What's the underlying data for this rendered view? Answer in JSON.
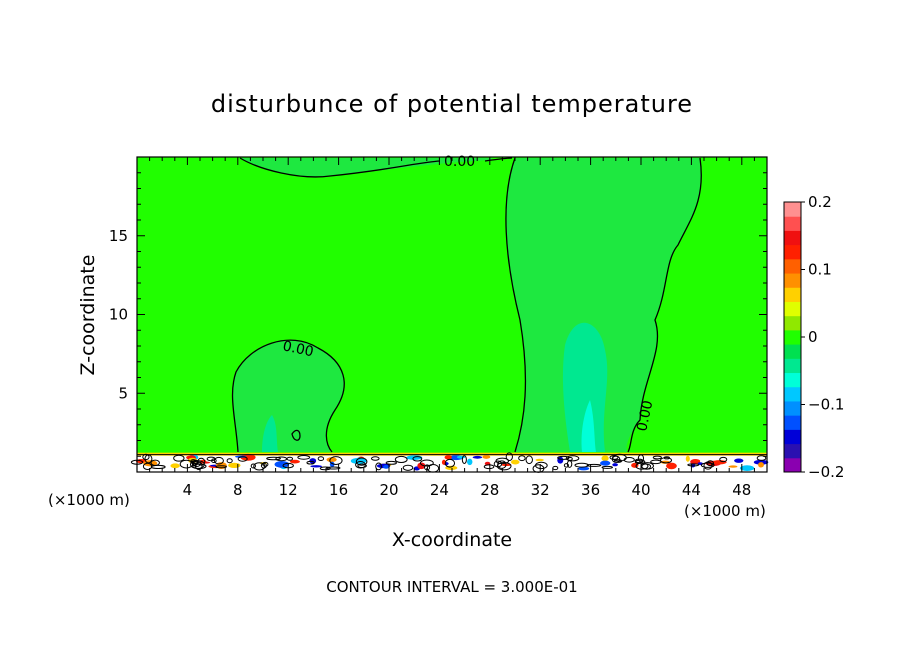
{
  "chart_data": {
    "type": "heatmap",
    "title": "disturbunce of potential temperature",
    "xlabel": "X-coordinate",
    "ylabel": "Z-coordinate",
    "x_unit": "(×1000 m)",
    "x_ticks": [
      4,
      8,
      12,
      16,
      20,
      24,
      28,
      32,
      36,
      40,
      44,
      48
    ],
    "y_ticks": [
      5,
      10,
      15
    ],
    "xlim": [
      0,
      50
    ],
    "ylim": [
      0,
      20
    ],
    "colorbar": {
      "ticks": [
        0.2,
        0.1,
        0,
        -0.1,
        -0.2
      ],
      "tick_labels": [
        "0.2",
        "0.1",
        "0",
        "−0.1",
        "−0.2"
      ],
      "range": [
        -0.2,
        0.2
      ],
      "colors": [
        "#8a00b0",
        "#2a10b0",
        "#0000d8",
        "#0050ff",
        "#0090ff",
        "#00c8ff",
        "#00ffd8",
        "#00e890",
        "#00e050",
        "#20ff00",
        "#90e800",
        "#e0ff00",
        "#ffd000",
        "#ff9000",
        "#ff6000",
        "#ff2000",
        "#f01010",
        "#ff5050",
        "#ff9090"
      ]
    },
    "field_background_color": "#21fe00",
    "contour_labels": [
      "0.00",
      "0.00",
      "0.00",
      "0.00"
    ],
    "note": "CONTOUR INTERVAL = 3.000E-01"
  }
}
